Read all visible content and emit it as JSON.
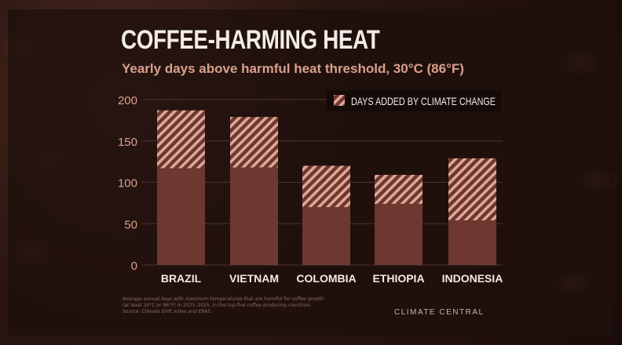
{
  "chart_data": {
    "type": "bar",
    "stacked": true,
    "title": "COFFEE-HARMING HEAT",
    "subtitle": "Yearly days above harmful heat threshold, 30°C (86°F)",
    "categories": [
      "BRAZIL",
      "VIETNAM",
      "COLOMBIA",
      "ETHIOPIA",
      "INDONESIA"
    ],
    "series": [
      {
        "values": [
          117,
          118,
          70,
          74,
          54
        ],
        "color": "#6e3830",
        "pattern": "solid"
      },
      {
        "name": "DAYS ADDED BY CLIMATE CHANGE",
        "values": [
          70,
          61,
          50,
          35,
          75
        ],
        "color": "#e0a898",
        "pattern": "hatched"
      }
    ],
    "ylim": [
      0,
      200
    ],
    "yticks": [
      "0",
      "50",
      "100",
      "150",
      "200"
    ],
    "grid": true,
    "legend_position": "top-right"
  },
  "footnote": {
    "lines": [
      "Average annual days with maximum temperatures that are harmful for coffee growth",
      "(at least 30°C or 86°F) in 2021–2025, in the top-five coffee producing countries.",
      "Source: Climate Shift Index and ERA5."
    ]
  },
  "brand": {
    "name": "CLIMATE CENTRAL"
  }
}
